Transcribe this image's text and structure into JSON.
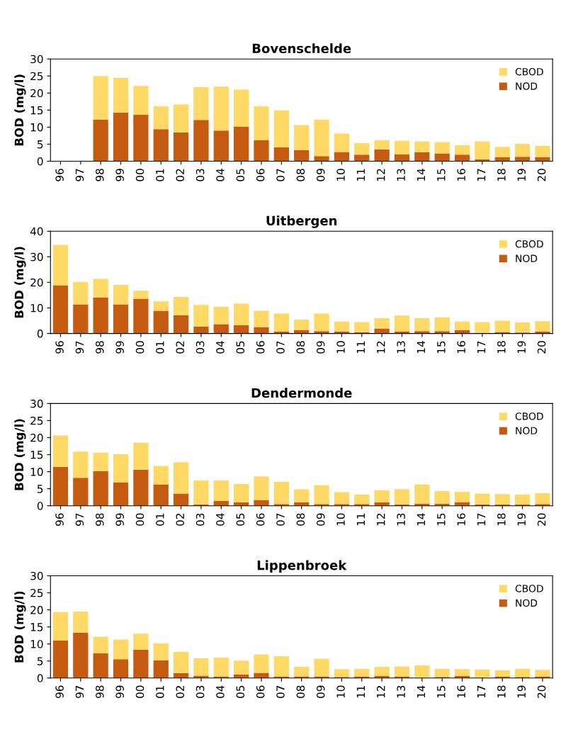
{
  "chart_data": [
    {
      "type": "bar",
      "title": "Bovenschelde",
      "ylabel": "BOD (mg/l)",
      "stacked": true,
      "legend": "top right",
      "grid": false,
      "ylim": [
        0,
        30
      ],
      "yticks": [
        0,
        5,
        10,
        15,
        20,
        25,
        30
      ],
      "categories": [
        "96",
        "97",
        "98",
        "99",
        "00",
        "01",
        "02",
        "03",
        "04",
        "05",
        "06",
        "07",
        "08",
        "09",
        "10",
        "11",
        "12",
        "13",
        "14",
        "15",
        "16",
        "17",
        "18",
        "19",
        "20"
      ],
      "series": [
        {
          "name": "NOD",
          "color": "#c55a11",
          "values": [
            null,
            null,
            12.2,
            14.3,
            13.6,
            9.4,
            8.4,
            12.1,
            9.0,
            10.2,
            6.2,
            4.1,
            3.2,
            1.5,
            2.7,
            1.9,
            3.5,
            2.0,
            2.6,
            2.3,
            1.9,
            0.5,
            1.2,
            1.3,
            1.2
          ]
        },
        {
          "name": "CBOD",
          "color": "#ffd966",
          "values": [
            null,
            null,
            12.8,
            10.2,
            8.5,
            6.7,
            8.3,
            9.6,
            12.9,
            10.8,
            9.9,
            10.8,
            7.4,
            10.7,
            5.4,
            3.4,
            2.7,
            4.0,
            3.2,
            3.3,
            2.8,
            5.3,
            3.0,
            3.8,
            3.3
          ]
        }
      ]
    },
    {
      "type": "bar",
      "title": "Uitbergen",
      "ylabel": "BOD (mg/l)",
      "stacked": true,
      "legend": "top right",
      "grid": false,
      "ylim": [
        0,
        40
      ],
      "yticks": [
        0,
        10,
        20,
        30,
        40
      ],
      "categories": [
        "96",
        "97",
        "98",
        "99",
        "00",
        "01",
        "02",
        "03",
        "04",
        "05",
        "06",
        "07",
        "08",
        "09",
        "10",
        "11",
        "12",
        "13",
        "14",
        "15",
        "16",
        "17",
        "18",
        "19",
        "20"
      ],
      "series": [
        {
          "name": "NOD",
          "color": "#c55a11",
          "values": [
            18.9,
            11.4,
            14.1,
            11.4,
            13.6,
            8.9,
            7.2,
            2.7,
            3.6,
            3.2,
            2.5,
            0.7,
            1.4,
            0.9,
            0.7,
            0.5,
            2.0,
            0.7,
            0.9,
            0.9,
            1.3,
            0.2,
            0.6,
            0.4,
            0.7
          ]
        },
        {
          "name": "CBOD",
          "color": "#ffd966",
          "values": [
            15.8,
            8.7,
            7.3,
            7.6,
            3.1,
            3.7,
            7.1,
            8.5,
            6.9,
            8.5,
            6.4,
            7.1,
            4.0,
            6.9,
            4.0,
            3.9,
            4.0,
            6.3,
            5.1,
            5.4,
            3.4,
            4.2,
            4.4,
            3.9,
            4.1
          ]
        }
      ]
    },
    {
      "type": "bar",
      "title": "Dendermonde",
      "ylabel": "BOD (mg/l)",
      "stacked": true,
      "legend": "top right",
      "grid": false,
      "ylim": [
        0,
        30
      ],
      "yticks": [
        0,
        5,
        10,
        15,
        20,
        25,
        30
      ],
      "categories": [
        "96",
        "97",
        "98",
        "99",
        "00",
        "01",
        "02",
        "03",
        "04",
        "05",
        "06",
        "07",
        "08",
        "09",
        "10",
        "11",
        "12",
        "13",
        "14",
        "15",
        "16",
        "17",
        "18",
        "19",
        "20"
      ],
      "series": [
        {
          "name": "NOD",
          "color": "#c55a11",
          "values": [
            11.4,
            8.2,
            10.2,
            6.8,
            10.6,
            6.3,
            3.6,
            0.4,
            1.4,
            1.0,
            1.7,
            0.5,
            1.0,
            0.5,
            0.5,
            0.5,
            1.0,
            0.4,
            0.6,
            0.6,
            1.1,
            0.4,
            0.4,
            0.4,
            0.5
          ]
        },
        {
          "name": "CBOD",
          "color": "#ffd966",
          "values": [
            9.2,
            7.7,
            5.4,
            8.3,
            7.9,
            5.4,
            9.2,
            7.0,
            6.0,
            5.4,
            6.9,
            6.5,
            3.8,
            5.5,
            3.5,
            2.8,
            3.5,
            4.5,
            5.7,
            3.7,
            3.0,
            3.2,
            3.0,
            2.9,
            3.2
          ]
        }
      ]
    },
    {
      "type": "bar",
      "title": "Lippenbroek",
      "ylabel": "BOD (mg/l)",
      "stacked": true,
      "legend": "top right",
      "grid": false,
      "ylim": [
        0,
        30
      ],
      "yticks": [
        0,
        5,
        10,
        15,
        20,
        25,
        30
      ],
      "categories": [
        "96",
        "97",
        "98",
        "99",
        "00",
        "01",
        "02",
        "03",
        "04",
        "05",
        "06",
        "07",
        "08",
        "09",
        "10",
        "11",
        "12",
        "13",
        "14",
        "15",
        "16",
        "17",
        "18",
        "19",
        "20"
      ],
      "series": [
        {
          "name": "NOD",
          "color": "#c55a11",
          "values": [
            11.0,
            13.3,
            7.3,
            5.5,
            8.3,
            5.2,
            1.4,
            0.7,
            0.5,
            1.1,
            1.5,
            0.5,
            0.5,
            0.5,
            0.3,
            0.5,
            0.6,
            0.5,
            null,
            0.3,
            0.6,
            null,
            0.5,
            0.3,
            0.5
          ]
        },
        {
          "name": "CBOD",
          "color": "#ffd966",
          "values": [
            8.4,
            6.2,
            4.8,
            5.8,
            4.7,
            5.0,
            6.3,
            5.1,
            5.5,
            4.0,
            5.4,
            5.9,
            2.8,
            5.2,
            2.3,
            2.2,
            2.7,
            2.9,
            3.7,
            2.4,
            2.0,
            2.5,
            1.8,
            2.4,
            1.9
          ]
        }
      ]
    }
  ]
}
